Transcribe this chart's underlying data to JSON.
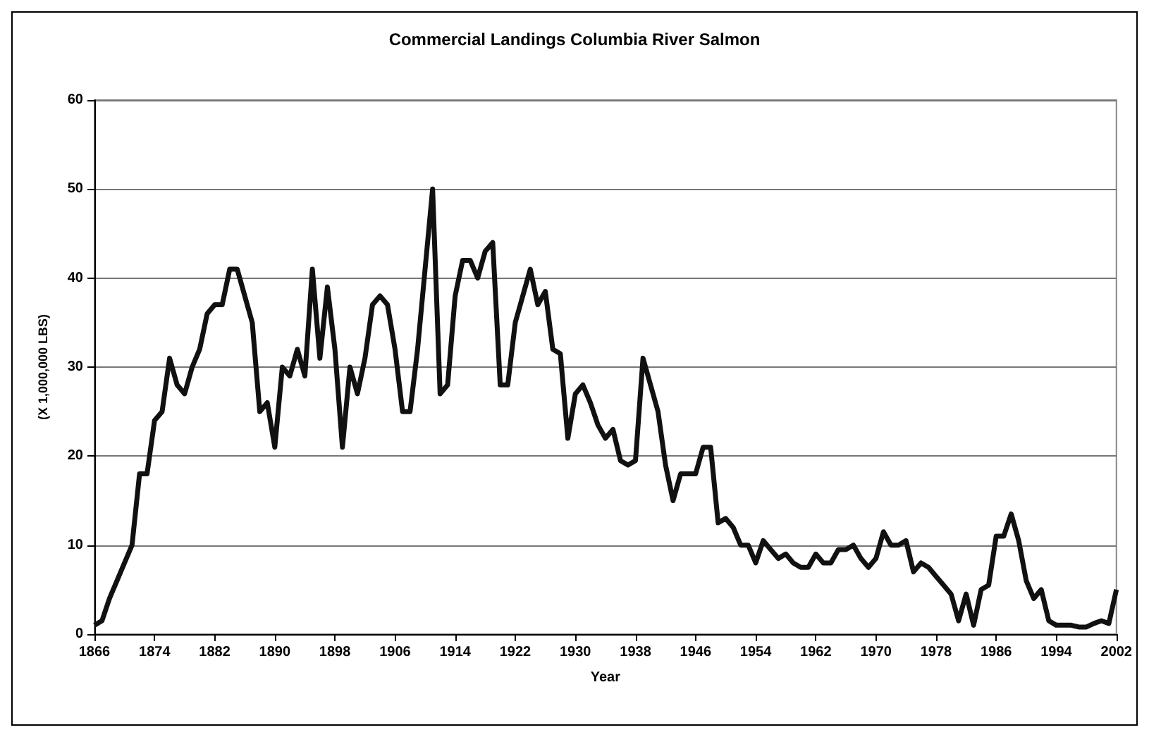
{
  "chart_data": {
    "type": "line",
    "title": "Commercial Landings Columbia River Salmon",
    "xlabel": "Year",
    "ylabel": "(X 1,000,000 LBS)",
    "x": [
      1866,
      1867,
      1868,
      1869,
      1870,
      1871,
      1872,
      1873,
      1874,
      1875,
      1876,
      1877,
      1878,
      1879,
      1880,
      1881,
      1882,
      1883,
      1884,
      1885,
      1886,
      1887,
      1888,
      1889,
      1890,
      1891,
      1892,
      1893,
      1894,
      1895,
      1896,
      1897,
      1898,
      1899,
      1900,
      1901,
      1902,
      1903,
      1904,
      1905,
      1906,
      1907,
      1908,
      1909,
      1910,
      1911,
      1912,
      1913,
      1914,
      1915,
      1916,
      1917,
      1918,
      1919,
      1920,
      1921,
      1922,
      1923,
      1924,
      1925,
      1926,
      1927,
      1928,
      1929,
      1930,
      1931,
      1932,
      1933,
      1934,
      1935,
      1936,
      1937,
      1938,
      1939,
      1940,
      1941,
      1942,
      1943,
      1944,
      1945,
      1946,
      1947,
      1948,
      1949,
      1950,
      1951,
      1952,
      1953,
      1954,
      1955,
      1956,
      1957,
      1958,
      1959,
      1960,
      1961,
      1962,
      1963,
      1964,
      1965,
      1966,
      1967,
      1968,
      1969,
      1970,
      1971,
      1972,
      1973,
      1974,
      1975,
      1976,
      1977,
      1978,
      1979,
      1980,
      1981,
      1982,
      1983,
      1984,
      1985,
      1986,
      1987,
      1988,
      1989,
      1990,
      1991,
      1992,
      1993,
      1994,
      1995,
      1996,
      1997,
      1998,
      1999,
      2000,
      2001,
      2002
    ],
    "series": [
      {
        "color": "#111111",
        "values": [
          1,
          1.5,
          4,
          6,
          8,
          10,
          18,
          18,
          24,
          25,
          31,
          28,
          27,
          30,
          32,
          36,
          37,
          37,
          41,
          41,
          38,
          35,
          25,
          26,
          21,
          30,
          29,
          32,
          29,
          41,
          31,
          39,
          32,
          21,
          30,
          27,
          31,
          37,
          38,
          37,
          32,
          25,
          25,
          32,
          41,
          50,
          27,
          28,
          38,
          42,
          42,
          40,
          43,
          44,
          28,
          28,
          35,
          38,
          41,
          37,
          38.5,
          32,
          31.5,
          22,
          27,
          28,
          26,
          23.5,
          22,
          23,
          19.5,
          19,
          19.5,
          31,
          28,
          25,
          19,
          15,
          18,
          18,
          18,
          21,
          21,
          12.5,
          13,
          12,
          10,
          10,
          8,
          10.5,
          9.5,
          8.5,
          9,
          8,
          7.5,
          7.5,
          9,
          8,
          8,
          9.5,
          9.5,
          10,
          8.5,
          7.5,
          8.5,
          11.5,
          10,
          10,
          10.5,
          7,
          8,
          7.5,
          6.5,
          5.5,
          4.5,
          1.5,
          4.5,
          1,
          5,
          5.5,
          11,
          11,
          13.5,
          10.5,
          6,
          4,
          5,
          1.5,
          1,
          1,
          1,
          0.8,
          0.8,
          1.2,
          1.5,
          1.2,
          5
        ]
      }
    ],
    "xlim": [
      1866,
      2002
    ],
    "xticks": [
      1866,
      1874,
      1882,
      1890,
      1898,
      1906,
      1914,
      1922,
      1930,
      1938,
      1946,
      1954,
      1962,
      1970,
      1978,
      1986,
      1994,
      2002
    ],
    "ylim": [
      0,
      60
    ],
    "yticks": [
      0,
      10,
      20,
      30,
      40,
      50,
      60
    ],
    "grid": "y",
    "marker": "none",
    "line_style": "solid"
  }
}
